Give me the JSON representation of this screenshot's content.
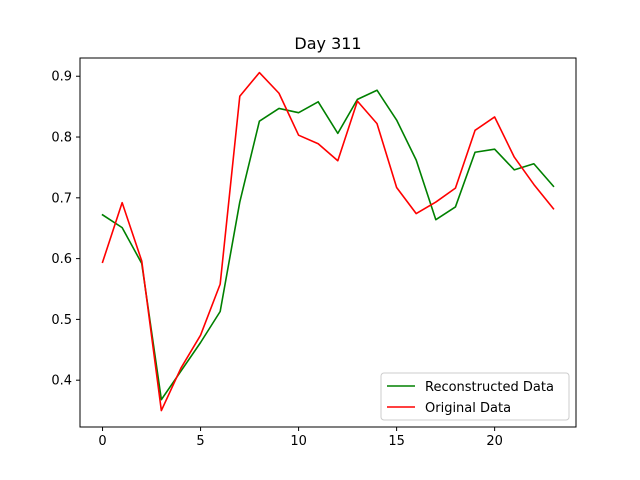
{
  "chart_data": {
    "type": "line",
    "title": "Day 311",
    "xlabel": "",
    "ylabel": "",
    "xlim": [
      -1.15,
      24.15
    ],
    "ylim": [
      0.323,
      0.93
    ],
    "x_ticks": [
      0,
      5,
      10,
      15,
      20
    ],
    "y_ticks": [
      0.4,
      0.5,
      0.6,
      0.7,
      0.8,
      0.9
    ],
    "y_tick_labels": [
      "0.4",
      "0.5",
      "0.6",
      "0.7",
      "0.8",
      "0.9"
    ],
    "grid": false,
    "legend_position": "lower-right",
    "x": [
      0,
      1,
      2,
      3,
      4,
      5,
      6,
      7,
      8,
      9,
      10,
      11,
      12,
      13,
      14,
      15,
      16,
      17,
      18,
      19,
      20,
      21,
      22,
      23
    ],
    "series": [
      {
        "name": "Reconstructed Data",
        "color": "#008000",
        "values": [
          0.672,
          0.651,
          0.592,
          0.368,
          0.415,
          0.462,
          0.513,
          0.693,
          0.826,
          0.847,
          0.84,
          0.858,
          0.806,
          0.862,
          0.877,
          0.828,
          0.762,
          0.664,
          0.685,
          0.775,
          0.78,
          0.746,
          0.756,
          0.719
        ]
      },
      {
        "name": "Original Data",
        "color": "#ff0000",
        "values": [
          0.594,
          0.692,
          0.596,
          0.35,
          0.42,
          0.474,
          0.558,
          0.867,
          0.906,
          0.872,
          0.803,
          0.789,
          0.761,
          0.859,
          0.822,
          0.717,
          0.674,
          0.693,
          0.716,
          0.811,
          0.833,
          0.767,
          0.722,
          0.682
        ]
      }
    ]
  }
}
